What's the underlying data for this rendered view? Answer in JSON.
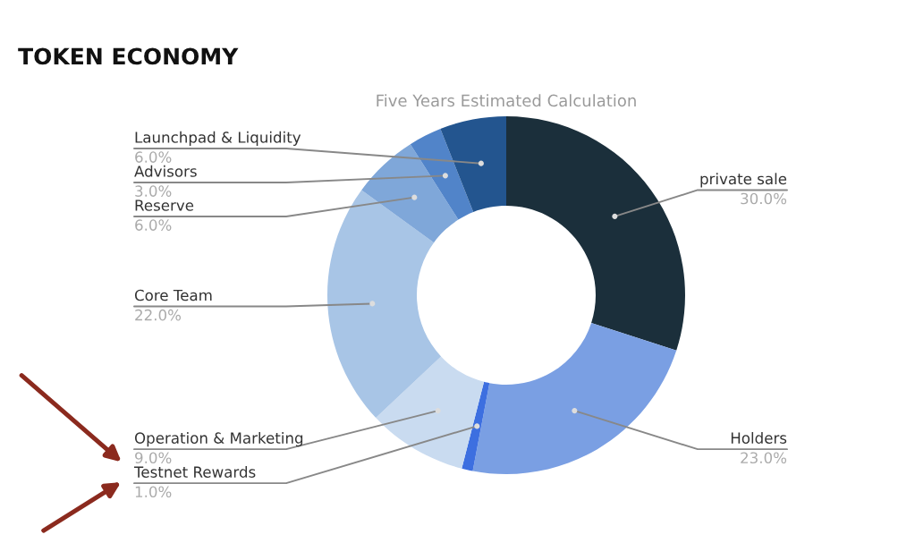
{
  "chart_data": {
    "type": "donut",
    "title": "TOKEN ECONOMY",
    "subtitle": "Five Years Estimated Calculation",
    "categories": [
      "private sale",
      "Holders",
      "Testnet Rewards",
      "Operation & Marketing",
      "Core Team",
      "Reserve",
      "Advisors",
      "Launchpad & Liquidity"
    ],
    "values": [
      30.0,
      23.0,
      1.0,
      9.0,
      22.0,
      6.0,
      3.0,
      6.0
    ],
    "value_labels": [
      "30.0%",
      "23.0%",
      "1.0%",
      "9.0%",
      "22.0%",
      "6.0%",
      "3.0%",
      "6.0%"
    ],
    "colors": [
      "#1b2f3b",
      "#7a9fe3",
      "#3d6fe0",
      "#c9dbf0",
      "#a8c5e6",
      "#7fa7d9",
      "#5184c9",
      "#23558f"
    ]
  }
}
